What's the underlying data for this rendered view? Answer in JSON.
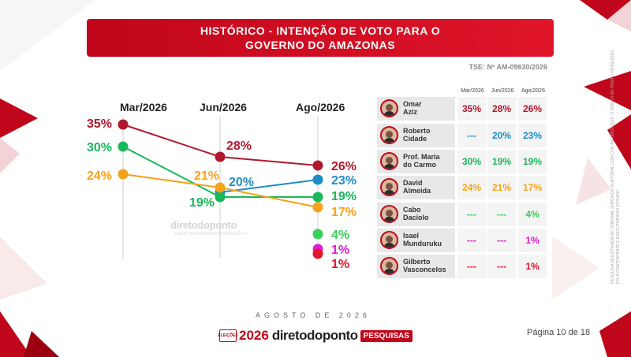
{
  "title": {
    "line1": "HISTÓRICO - INTENÇÃO DE VOTO PARA O",
    "line2": "GOVERNO DO AMAZONAS"
  },
  "tse": "TSE: Nº AM-09630/2026",
  "periods": [
    "Mar/2026",
    "Jun/2026",
    "Ago/2026"
  ],
  "table_headers": [
    "Mar/2026",
    "Jun/2026",
    "Ago/2026"
  ],
  "colors": {
    "accent": "#c0061a",
    "omar": "#b0182f",
    "roberto": "#1f8cc7",
    "maria": "#19b85a",
    "david": "#f4a21c",
    "cabo": "#35d15a",
    "isael": "#e01bd3",
    "gilberto": "#e1152f"
  },
  "candidates": [
    {
      "name_line1": "Omar",
      "name_line2": "Aziz",
      "color": "#b0182f",
      "values": [
        "35%",
        "28%",
        "26%"
      ]
    },
    {
      "name_line1": "Roberto",
      "name_line2": "Cidade",
      "color": "#1f8cc7",
      "values": [
        "---",
        "20%",
        "23%"
      ]
    },
    {
      "name_line1": "Prof. Maria",
      "name_line2": "do Carmo",
      "color": "#19b85a",
      "values": [
        "30%",
        "19%",
        "19%"
      ]
    },
    {
      "name_line1": "David",
      "name_line2": "Almeida",
      "color": "#f4a21c",
      "values": [
        "24%",
        "21%",
        "17%"
      ]
    },
    {
      "name_line1": "Cabo",
      "name_line2": "Daciolo",
      "color": "#35d15a",
      "values": [
        "---",
        "---",
        "4%"
      ]
    },
    {
      "name_line1": "Isael",
      "name_line2": "Munduruku",
      "color": "#e01bd3",
      "values": [
        "---",
        "---",
        "1%"
      ]
    },
    {
      "name_line1": "Gilberto",
      "name_line2": "Vasconcelos",
      "color": "#e1152f",
      "values": [
        "---",
        "---",
        "1%"
      ]
    }
  ],
  "chart_data": {
    "type": "line",
    "x": [
      "Mar/2026",
      "Jun/2026",
      "Ago/2026"
    ],
    "series": [
      {
        "name": "Omar Aziz",
        "values": [
          35,
          28,
          26
        ],
        "color": "#b0182f"
      },
      {
        "name": "Roberto Cidade",
        "values": [
          null,
          20,
          23
        ],
        "color": "#1f8cc7"
      },
      {
        "name": "Prof. Maria do Carmo",
        "values": [
          30,
          19,
          19
        ],
        "color": "#19b85a"
      },
      {
        "name": "David Almeida",
        "values": [
          24,
          21,
          17
        ],
        "color": "#f4a21c"
      },
      {
        "name": "Cabo Daciolo",
        "values": [
          null,
          null,
          4
        ],
        "color": "#35d15a"
      },
      {
        "name": "Isael Munduruku",
        "values": [
          null,
          null,
          1
        ],
        "color": "#e01bd3"
      },
      {
        "name": "Gilberto Vasconcelos",
        "values": [
          null,
          null,
          1
        ],
        "color": "#e1152f"
      }
    ],
    "labels": [
      {
        "series": 0,
        "point": 0,
        "text": "35%"
      },
      {
        "series": 0,
        "point": 1,
        "text": "28%"
      },
      {
        "series": 0,
        "point": 2,
        "text": "26%"
      },
      {
        "series": 1,
        "point": 1,
        "text": "20%"
      },
      {
        "series": 1,
        "point": 2,
        "text": "23%"
      },
      {
        "series": 2,
        "point": 0,
        "text": "30%"
      },
      {
        "series": 2,
        "point": 1,
        "text": "19%"
      },
      {
        "series": 2,
        "point": 2,
        "text": "19%"
      },
      {
        "series": 3,
        "point": 0,
        "text": "24%"
      },
      {
        "series": 3,
        "point": 1,
        "text": "21%"
      },
      {
        "series": 3,
        "point": 2,
        "text": "17%"
      },
      {
        "series": 4,
        "point": 2,
        "text": "4%"
      },
      {
        "series": 5,
        "point": 2,
        "text": "1%"
      },
      {
        "series": 6,
        "point": 2,
        "text": "1%"
      }
    ]
  },
  "watermark": "diretodoponto",
  "watermark_sub": "QUEM TRANSFORMA INFORMAÇÃO É",
  "footer": {
    "month": "AGOSTO DE 2026",
    "logo_box": "ELEIÇÕES",
    "logo_year": "2026",
    "logo_name": "diretodoponto",
    "logo_tag": "PESQUISAS",
    "page": "Página 10 de 18"
  },
  "side_note": "PESQUISA REGISTRADA NO TRIBUNAL SUPERIOR ELEITORAL COM O Nº AM-09630/2026. O DIRETO AO PONTO PESQUISAS FOI A CONTRATANTE E EXECUTORA DO ESTUDO."
}
